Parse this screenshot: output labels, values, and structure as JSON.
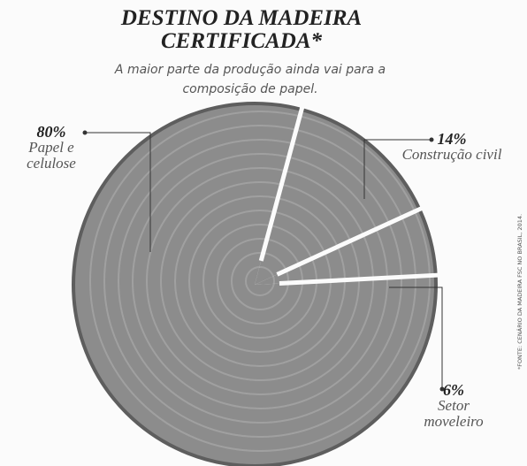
{
  "chart_data": {
    "type": "pie",
    "title": "DESTINO DA MADEIRA CERTIFICADA*",
    "subtitle": "A maior parte da produção ainda vai para a composição de papel.",
    "categories": [
      "Papel e celulose",
      "Construção civil",
      "Setor moveleiro"
    ],
    "values": [
      80,
      14,
      6
    ],
    "value_labels": [
      "80%",
      "14%",
      "6%"
    ],
    "color": "#8c8c8c",
    "source": "*FONTE: CENÁRIO DA MADEIRA FSC NO BRASIL, 2014."
  }
}
